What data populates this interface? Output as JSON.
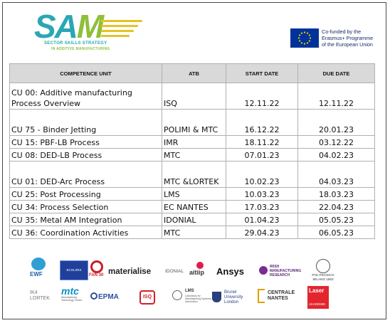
{
  "header": {
    "logo_word_a": "SA",
    "logo_word_m": "M",
    "logo_tagline1": "SECTOR SKILLS STRATEGY",
    "logo_tagline2": "IN ADDITIVE MANUFACTURING",
    "eu_text": "Co-funded by the Erasmus+ Programme of the European Union"
  },
  "table": {
    "headers": [
      "COMPETENCE UNIT",
      "ATB",
      "START DATE",
      "DUE DATE"
    ],
    "rows": [
      {
        "cu": "CU 00: Additive manufacturing Process Overview",
        "atb": "ISQ",
        "start": "12.11.22",
        "due": "12.11.22"
      },
      {
        "cu": "CU 75 - Binder Jetting",
        "atb": "POLIMI & MTC",
        "start": "16.12.22",
        "due": "20.01.23"
      },
      {
        "cu": "CU 15: PBF-LB Process",
        "atb": "IMR",
        "start": "18.11.22",
        "due": "03.12.22"
      },
      {
        "cu": "CU 08: DED-LB Process",
        "atb": "MTC",
        "start": "07.01.23",
        "due": "04.02.23"
      },
      {
        "cu": "CU 01: DED-Arc Process",
        "atb": "MTC &LORTEK",
        "start": "10.02.23",
        "due": "04.03.23"
      },
      {
        "cu": "CU 25: Post Processing",
        "atb": "LMS",
        "start": "10.03.23",
        "due": "18.03.23"
      },
      {
        "cu": "CU 34: Process Selection",
        "atb": "EC NANTES",
        "start": "17.03.23",
        "due": "22.04.23"
      },
      {
        "cu": "CU 35: Metal AM Integration",
        "atb": "IDONIAL",
        "start": "01.04.23",
        "due": "05.05.23"
      },
      {
        "cu": "CU 36: Coordination Activities",
        "atb": "MTC",
        "start": "29.04.23",
        "due": "06.05.23"
      }
    ]
  },
  "partners": {
    "ewf": "EWF",
    "ecoliris": "ECOLIRIS",
    "fan30": "FAN 30",
    "materialise": "materialise",
    "idonial": "IDONIAL",
    "aitiip": "aitiip",
    "ansys": "Ansys",
    "irish": "IRISH MANUFACTURING RESEARCH",
    "polimi": "POLITECNICO MILANO 1863",
    "lortek": "IK4 LORTEK",
    "mtc": "mtc",
    "mtc_sub": "Manufacturing Technology Centre",
    "epma": "EPMA",
    "isq": "ISQ",
    "lms": "LMS",
    "lms_sub": "Laboratory for Manufacturing Systems & Automation",
    "brunel": "Brunel University London",
    "centrale": "CENTRALE NANTES",
    "laser": "Laser",
    "laser_sub": "AKADEMIE"
  }
}
